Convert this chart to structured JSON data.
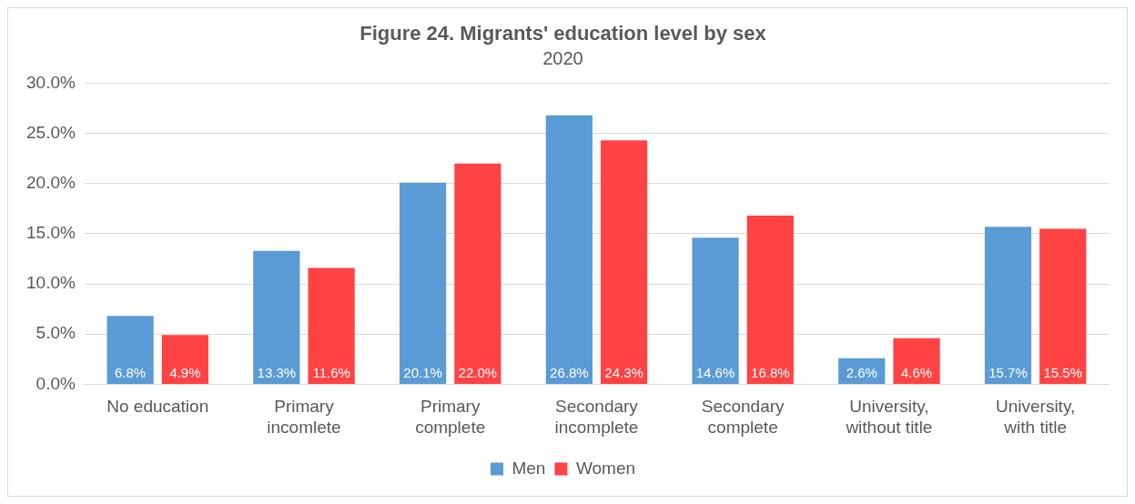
{
  "chart_data": {
    "type": "bar",
    "title": "Figure 24. Migrants' education level by sex",
    "subtitle": "2020",
    "categories": [
      "No education",
      "Primary incomlete",
      "Primary complete",
      "Secondary incomplete",
      "Secondary complete",
      "University, without title",
      "University, with title"
    ],
    "series": [
      {
        "name": "Men",
        "color": "#5b9bd5",
        "values": [
          6.8,
          13.3,
          20.1,
          26.8,
          14.6,
          2.6,
          15.7
        ],
        "value_labels": [
          "6.8%",
          "13.3%",
          "20.1%",
          "26.8%",
          "14.6%",
          "2.6%",
          "15.7%"
        ]
      },
      {
        "name": "Women",
        "color": "#ff4343",
        "values": [
          4.9,
          11.6,
          22.0,
          24.3,
          16.8,
          4.6,
          15.5
        ],
        "value_labels": [
          "4.9%",
          "11.6%",
          "22.0%",
          "24.3%",
          "16.8%",
          "4.6%",
          "15.5%"
        ]
      }
    ],
    "ylim": [
      0,
      30
    ],
    "yticks": [
      {
        "value": 0,
        "label": "0.0%"
      },
      {
        "value": 5,
        "label": "5.0%"
      },
      {
        "value": 10,
        "label": "10.0%"
      },
      {
        "value": 15,
        "label": "15.0%"
      },
      {
        "value": 20,
        "label": "20.0%"
      },
      {
        "value": 25,
        "label": "25.0%"
      },
      {
        "value": 30,
        "label": "30.0%"
      }
    ],
    "grid": "y",
    "legend": "bottom"
  }
}
